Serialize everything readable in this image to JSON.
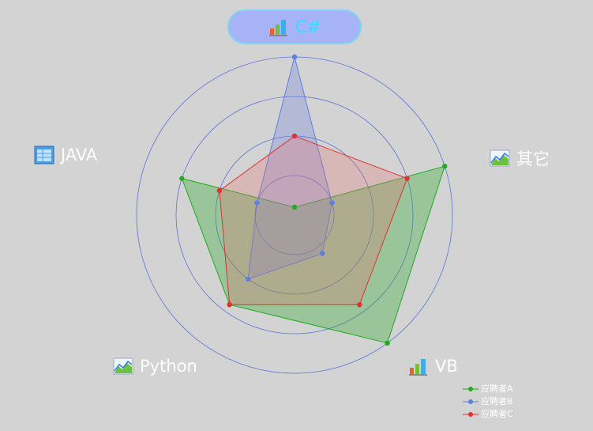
{
  "chart_data": {
    "type": "radar",
    "max": 10,
    "ring_levels": 4,
    "indicators": [
      {
        "name": "C#",
        "icon": "bar-chart-icon",
        "highlight": true
      },
      {
        "name": "其它",
        "icon": "area-chart-icon"
      },
      {
        "name": "VB",
        "icon": "bar-chart-icon"
      },
      {
        "name": "Python",
        "icon": "area-chart-icon"
      },
      {
        "name": "JAVA",
        "icon": "table-icon"
      }
    ],
    "series": [
      {
        "name": "应聘者A",
        "color": "#22aa22",
        "fill": "rgba(50,170,50,0.35)",
        "values": [
          0.5,
          10,
          10,
          7,
          7.5
        ]
      },
      {
        "name": "应聘者B",
        "color": "#5c7fe0",
        "fill": "rgba(110,130,220,0.30)",
        "values": [
          10,
          2.5,
          3,
          5,
          2.5
        ]
      },
      {
        "name": "应聘者C",
        "color": "#e03030",
        "fill": "rgba(230,110,110,0.28)",
        "values": [
          5,
          7.5,
          7,
          7,
          5
        ]
      }
    ],
    "legend_position": "bottom-right"
  }
}
